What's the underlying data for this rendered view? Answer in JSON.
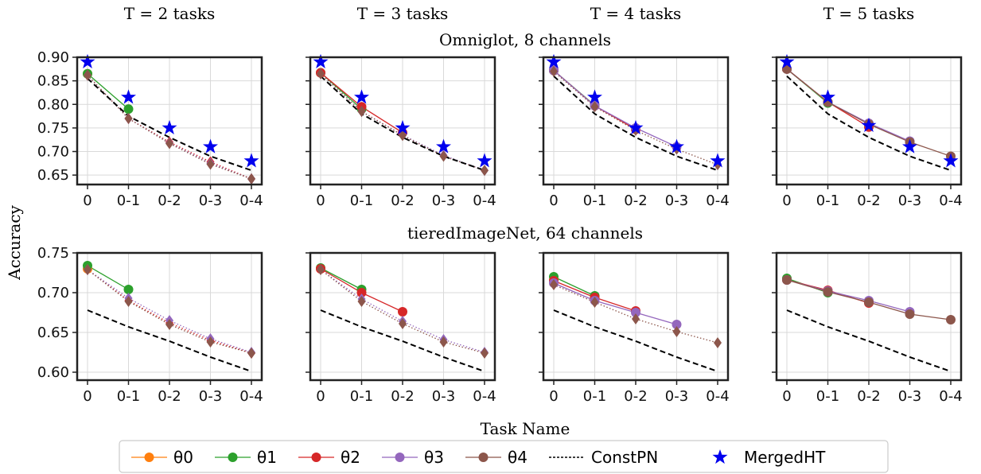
{
  "figure": {
    "column_titles": [
      "T = 2 tasks",
      "T = 3 tasks",
      "T = 4 tasks",
      "T = 5 tasks"
    ],
    "row_titles": [
      "Omniglot, 8 channels",
      "tieredImageNet, 64 channels"
    ],
    "ylabel": "Accuracy",
    "xlabel": "Task Name"
  },
  "legend": {
    "placement": "bottom-center",
    "items": [
      {
        "label": "θ0",
        "color": "#ff7f0e",
        "marker": "circle",
        "style": "solid"
      },
      {
        "label": "θ1",
        "color": "#2ca02c",
        "marker": "circle",
        "style": "solid"
      },
      {
        "label": "θ2",
        "color": "#d62728",
        "marker": "circle",
        "style": "solid"
      },
      {
        "label": "θ3",
        "color": "#9467bd",
        "marker": "circle",
        "style": "solid"
      },
      {
        "label": "θ4",
        "color": "#8c564b",
        "marker": "circle",
        "style": "solid"
      },
      {
        "label": "ConstPN",
        "color": "#000000",
        "marker": "none",
        "style": "dashed"
      },
      {
        "label": "MergedHT",
        "color": "#0000ee",
        "marker": "star",
        "style": "none"
      }
    ]
  },
  "chart_data": [
    {
      "type": "line",
      "row": 0,
      "col": 0,
      "categories": [
        "0",
        "0-1",
        "0-2",
        "0-3",
        "0-4"
      ],
      "ylim": [
        0.63,
        0.9
      ],
      "yticks": [
        0.65,
        0.7,
        0.75,
        0.8,
        0.85,
        0.9
      ],
      "show_yticks": true,
      "grid": true,
      "series": [
        {
          "name": "θ0",
          "color": "#ff7f0e",
          "dash": "solid",
          "marker": "circle",
          "values": [
            0.865,
            null,
            null,
            null,
            null
          ]
        },
        {
          "name": "θ1",
          "color": "#2ca02c",
          "dash": "solid",
          "marker": "circle",
          "values": [
            0.865,
            0.79,
            null,
            null,
            null
          ]
        },
        {
          "name": "θ2",
          "color": "#d62728",
          "dash": "dotted",
          "marker": "diamond",
          "values": [
            0.862,
            0.77,
            0.72,
            0.678,
            0.642
          ]
        },
        {
          "name": "θ3",
          "color": "#9467bd",
          "dash": "dotted",
          "marker": "diamond",
          "values": [
            0.862,
            0.77,
            0.718,
            0.675,
            0.642
          ]
        },
        {
          "name": "θ4",
          "color": "#8c564b",
          "dash": "dotted",
          "marker": "diamond",
          "values": [
            0.862,
            0.77,
            0.717,
            0.673,
            0.642
          ]
        },
        {
          "name": "ConstPN",
          "color": "#000000",
          "dash": "dashed",
          "marker": "none",
          "values": [
            0.855,
            0.775,
            0.73,
            0.69,
            0.66
          ]
        },
        {
          "name": "MergedHT",
          "color": "#0000ee",
          "dash": "none",
          "marker": "star",
          "values": [
            0.89,
            0.815,
            0.75,
            0.71,
            0.68
          ]
        }
      ]
    },
    {
      "type": "line",
      "row": 0,
      "col": 1,
      "categories": [
        "0",
        "0-1",
        "0-2",
        "0-3",
        "0-4"
      ],
      "ylim": [
        0.63,
        0.9
      ],
      "yticks": [
        0.65,
        0.7,
        0.75,
        0.8,
        0.85,
        0.9
      ],
      "show_yticks": false,
      "grid": true,
      "series": [
        {
          "name": "θ0",
          "color": "#ff7f0e",
          "dash": "solid",
          "marker": "circle",
          "values": [
            0.867,
            null,
            null,
            null,
            null
          ]
        },
        {
          "name": "θ1",
          "color": "#2ca02c",
          "dash": "solid",
          "marker": "circle",
          "values": [
            0.867,
            0.79,
            null,
            null,
            null
          ]
        },
        {
          "name": "θ2",
          "color": "#d62728",
          "dash": "solid",
          "marker": "circle",
          "values": [
            0.867,
            0.795,
            0.74,
            null,
            null
          ]
        },
        {
          "name": "θ3",
          "color": "#9467bd",
          "dash": "dotted",
          "marker": "diamond",
          "values": [
            0.865,
            0.785,
            0.735,
            0.692,
            0.66
          ]
        },
        {
          "name": "θ4",
          "color": "#8c564b",
          "dash": "dotted",
          "marker": "diamond",
          "values": [
            0.865,
            0.785,
            0.734,
            0.69,
            0.66
          ]
        },
        {
          "name": "ConstPN",
          "color": "#000000",
          "dash": "dashed",
          "marker": "none",
          "values": [
            0.86,
            0.78,
            0.73,
            0.69,
            0.66
          ]
        },
        {
          "name": "MergedHT",
          "color": "#0000ee",
          "dash": "none",
          "marker": "star",
          "values": [
            0.89,
            0.815,
            0.75,
            0.71,
            0.68
          ]
        }
      ]
    },
    {
      "type": "line",
      "row": 0,
      "col": 2,
      "categories": [
        "0",
        "0-1",
        "0-2",
        "0-3",
        "0-4"
      ],
      "ylim": [
        0.63,
        0.9
      ],
      "yticks": [
        0.65,
        0.7,
        0.75,
        0.8,
        0.85,
        0.9
      ],
      "show_yticks": false,
      "grid": true,
      "series": [
        {
          "name": "θ0",
          "color": "#ff7f0e",
          "dash": "solid",
          "marker": "circle",
          "values": [
            0.872,
            null,
            null,
            null,
            null
          ]
        },
        {
          "name": "θ1",
          "color": "#2ca02c",
          "dash": "solid",
          "marker": "circle",
          "values": [
            0.872,
            0.798,
            null,
            null,
            null
          ]
        },
        {
          "name": "θ2",
          "color": "#d62728",
          "dash": "solid",
          "marker": "circle",
          "values": [
            0.872,
            0.797,
            0.747,
            null,
            null
          ]
        },
        {
          "name": "θ3",
          "color": "#9467bd",
          "dash": "solid",
          "marker": "circle",
          "values": [
            0.872,
            0.797,
            0.75,
            0.71,
            null
          ]
        },
        {
          "name": "θ4",
          "color": "#8c564b",
          "dash": "dotted",
          "marker": "diamond",
          "values": [
            0.87,
            0.795,
            0.745,
            0.705,
            0.672
          ]
        },
        {
          "name": "ConstPN",
          "color": "#000000",
          "dash": "dashed",
          "marker": "none",
          "values": [
            0.86,
            0.78,
            0.73,
            0.69,
            0.66
          ]
        },
        {
          "name": "MergedHT",
          "color": "#0000ee",
          "dash": "none",
          "marker": "star",
          "values": [
            0.89,
            0.815,
            0.75,
            0.71,
            0.68
          ]
        }
      ]
    },
    {
      "type": "line",
      "row": 0,
      "col": 3,
      "categories": [
        "0",
        "0-1",
        "0-2",
        "0-3",
        "0-4"
      ],
      "ylim": [
        0.63,
        0.9
      ],
      "yticks": [
        0.65,
        0.7,
        0.75,
        0.8,
        0.85,
        0.9
      ],
      "show_yticks": false,
      "grid": true,
      "series": [
        {
          "name": "θ0",
          "color": "#ff7f0e",
          "dash": "solid",
          "marker": "circle",
          "values": [
            0.875,
            null,
            null,
            null,
            null
          ]
        },
        {
          "name": "θ1",
          "color": "#2ca02c",
          "dash": "solid",
          "marker": "circle",
          "values": [
            0.875,
            0.803,
            null,
            null,
            null
          ]
        },
        {
          "name": "θ2",
          "color": "#d62728",
          "dash": "solid",
          "marker": "circle",
          "values": [
            0.875,
            0.805,
            0.752,
            null,
            null
          ]
        },
        {
          "name": "θ3",
          "color": "#9467bd",
          "dash": "solid",
          "marker": "circle",
          "values": [
            0.875,
            0.805,
            0.76,
            0.722,
            null
          ]
        },
        {
          "name": "θ4",
          "color": "#8c564b",
          "dash": "solid",
          "marker": "circle",
          "values": [
            0.875,
            0.805,
            0.758,
            0.72,
            0.69
          ]
        },
        {
          "name": "ConstPN",
          "color": "#000000",
          "dash": "dashed",
          "marker": "none",
          "values": [
            0.86,
            0.78,
            0.73,
            0.69,
            0.66
          ]
        },
        {
          "name": "MergedHT",
          "color": "#0000ee",
          "dash": "none",
          "marker": "star",
          "values": [
            0.89,
            0.815,
            0.755,
            0.71,
            0.68
          ]
        }
      ]
    },
    {
      "type": "line",
      "row": 1,
      "col": 0,
      "categories": [
        "0",
        "0-1",
        "0-2",
        "0-3",
        "0-4"
      ],
      "ylim": [
        0.59,
        0.75
      ],
      "yticks": [
        0.6,
        0.65,
        0.7,
        0.75
      ],
      "show_yticks": true,
      "grid": true,
      "series": [
        {
          "name": "θ0",
          "color": "#ff7f0e",
          "dash": "solid",
          "marker": "circle",
          "values": [
            0.73,
            null,
            null,
            null,
            null
          ]
        },
        {
          "name": "θ1",
          "color": "#2ca02c",
          "dash": "solid",
          "marker": "circle",
          "values": [
            0.734,
            0.704,
            null,
            null,
            null
          ]
        },
        {
          "name": "θ2",
          "color": "#d62728",
          "dash": "dotted",
          "marker": "diamond",
          "values": [
            0.729,
            0.69,
            0.662,
            0.64,
            0.624
          ]
        },
        {
          "name": "θ3",
          "color": "#9467bd",
          "dash": "dotted",
          "marker": "diamond",
          "values": [
            0.729,
            0.693,
            0.665,
            0.642,
            0.625
          ]
        },
        {
          "name": "θ4",
          "color": "#8c564b",
          "dash": "dotted",
          "marker": "diamond",
          "values": [
            0.729,
            0.689,
            0.66,
            0.638,
            0.624
          ]
        },
        {
          "name": "ConstPN",
          "color": "#000000",
          "dash": "dashed",
          "marker": "none",
          "values": [
            0.678,
            0.657,
            0.639,
            0.619,
            0.601
          ]
        }
      ]
    },
    {
      "type": "line",
      "row": 1,
      "col": 1,
      "categories": [
        "0",
        "0-1",
        "0-2",
        "0-3",
        "0-4"
      ],
      "ylim": [
        0.59,
        0.75
      ],
      "yticks": [
        0.6,
        0.65,
        0.7,
        0.75
      ],
      "show_yticks": false,
      "grid": true,
      "series": [
        {
          "name": "θ0",
          "color": "#ff7f0e",
          "dash": "solid",
          "marker": "circle",
          "values": [
            0.73,
            null,
            null,
            null,
            null
          ]
        },
        {
          "name": "θ1",
          "color": "#2ca02c",
          "dash": "solid",
          "marker": "circle",
          "values": [
            0.731,
            0.704,
            null,
            null,
            null
          ]
        },
        {
          "name": "θ2",
          "color": "#d62728",
          "dash": "solid",
          "marker": "circle",
          "values": [
            0.73,
            0.7,
            0.676,
            null,
            null
          ]
        },
        {
          "name": "θ3",
          "color": "#9467bd",
          "dash": "dotted",
          "marker": "diamond",
          "values": [
            0.729,
            0.692,
            0.664,
            0.641,
            0.625
          ]
        },
        {
          "name": "θ4",
          "color": "#8c564b",
          "dash": "dotted",
          "marker": "diamond",
          "values": [
            0.729,
            0.689,
            0.661,
            0.638,
            0.624
          ]
        },
        {
          "name": "ConstPN",
          "color": "#000000",
          "dash": "dashed",
          "marker": "none",
          "values": [
            0.678,
            0.657,
            0.639,
            0.619,
            0.601
          ]
        }
      ]
    },
    {
      "type": "line",
      "row": 1,
      "col": 2,
      "categories": [
        "0",
        "0-1",
        "0-2",
        "0-3",
        "0-4"
      ],
      "ylim": [
        0.59,
        0.75
      ],
      "yticks": [
        0.6,
        0.65,
        0.7,
        0.75
      ],
      "show_yticks": false,
      "grid": true,
      "series": [
        {
          "name": "θ0",
          "color": "#ff7f0e",
          "dash": "solid",
          "marker": "circle",
          "values": [
            0.716,
            null,
            null,
            null,
            null
          ]
        },
        {
          "name": "θ1",
          "color": "#2ca02c",
          "dash": "solid",
          "marker": "circle",
          "values": [
            0.72,
            0.696,
            null,
            null,
            null
          ]
        },
        {
          "name": "θ2",
          "color": "#d62728",
          "dash": "solid",
          "marker": "circle",
          "values": [
            0.715,
            0.694,
            0.677,
            null,
            null
          ]
        },
        {
          "name": "θ3",
          "color": "#9467bd",
          "dash": "solid",
          "marker": "circle",
          "values": [
            0.712,
            0.69,
            0.675,
            0.66,
            null
          ]
        },
        {
          "name": "θ4",
          "color": "#8c564b",
          "dash": "dotted",
          "marker": "diamond",
          "values": [
            0.71,
            0.688,
            0.667,
            0.651,
            0.637
          ]
        },
        {
          "name": "ConstPN",
          "color": "#000000",
          "dash": "dashed",
          "marker": "none",
          "values": [
            0.678,
            0.657,
            0.639,
            0.619,
            0.601
          ]
        }
      ]
    },
    {
      "type": "line",
      "row": 1,
      "col": 3,
      "categories": [
        "0",
        "0-1",
        "0-2",
        "0-3",
        "0-4"
      ],
      "ylim": [
        0.59,
        0.75
      ],
      "yticks": [
        0.6,
        0.65,
        0.7,
        0.75
      ],
      "show_yticks": false,
      "grid": true,
      "series": [
        {
          "name": "θ0",
          "color": "#ff7f0e",
          "dash": "solid",
          "marker": "circle",
          "values": [
            0.717,
            null,
            null,
            null,
            null
          ]
        },
        {
          "name": "θ1",
          "color": "#2ca02c",
          "dash": "solid",
          "marker": "circle",
          "values": [
            0.718,
            0.7,
            null,
            null,
            null
          ]
        },
        {
          "name": "θ2",
          "color": "#d62728",
          "dash": "solid",
          "marker": "circle",
          "values": [
            0.716,
            0.703,
            0.687,
            null,
            null
          ]
        },
        {
          "name": "θ3",
          "color": "#9467bd",
          "dash": "solid",
          "marker": "circle",
          "values": [
            0.716,
            0.702,
            0.69,
            0.676,
            null
          ]
        },
        {
          "name": "θ4",
          "color": "#8c564b",
          "dash": "solid",
          "marker": "circle",
          "values": [
            0.716,
            0.701,
            0.688,
            0.673,
            0.666
          ]
        },
        {
          "name": "ConstPN",
          "color": "#000000",
          "dash": "dashed",
          "marker": "none",
          "values": [
            0.678,
            0.657,
            0.639,
            0.619,
            0.601
          ]
        }
      ]
    }
  ]
}
